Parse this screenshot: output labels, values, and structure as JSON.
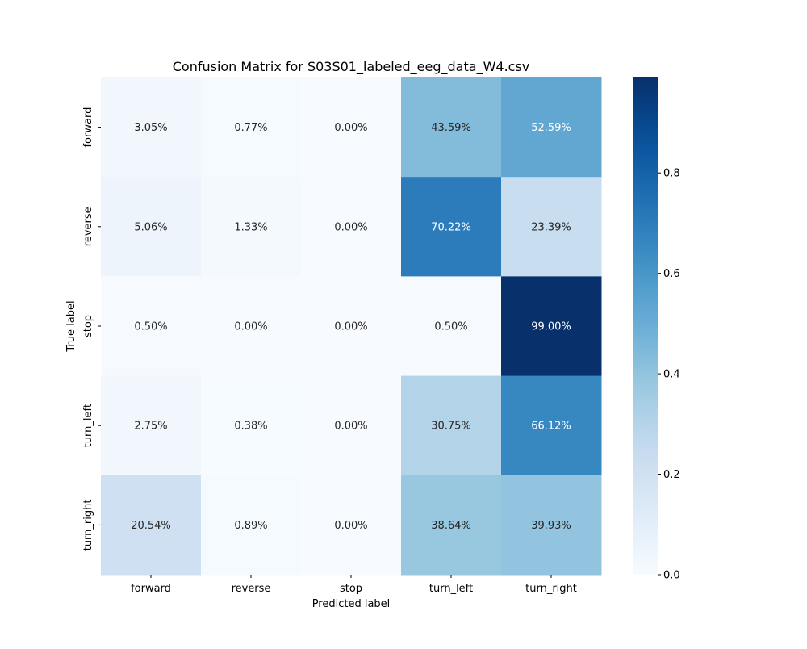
{
  "chart_data": {
    "type": "heatmap",
    "title": "Confusion Matrix for S03S01_labeled_eeg_data_W4.csv",
    "xlabel": "Predicted label",
    "ylabel": "True label",
    "x_categories": [
      "forward",
      "reverse",
      "stop",
      "turn_left",
      "turn_right"
    ],
    "y_categories": [
      "forward",
      "reverse",
      "stop",
      "turn_left",
      "turn_right"
    ],
    "values": [
      [
        0.0305,
        0.0077,
        0.0,
        0.4359,
        0.5259
      ],
      [
        0.0506,
        0.0133,
        0.0,
        0.7022,
        0.2339
      ],
      [
        0.005,
        0.0,
        0.0,
        0.005,
        0.99
      ],
      [
        0.0275,
        0.0038,
        0.0,
        0.3075,
        0.6612
      ],
      [
        0.2054,
        0.0089,
        0.0,
        0.3864,
        0.3993
      ]
    ],
    "annotations": [
      [
        "3.05%",
        "0.77%",
        "0.00%",
        "43.59%",
        "52.59%"
      ],
      [
        "5.06%",
        "1.33%",
        "0.00%",
        "70.22%",
        "23.39%"
      ],
      [
        "0.50%",
        "0.00%",
        "0.00%",
        "0.50%",
        "99.00%"
      ],
      [
        "2.75%",
        "0.38%",
        "0.00%",
        "30.75%",
        "66.12%"
      ],
      [
        "20.54%",
        "0.89%",
        "0.00%",
        "38.64%",
        "39.93%"
      ]
    ],
    "colormap": "Blues",
    "colorbar": {
      "range": [
        0.0,
        0.99
      ],
      "ticks": [
        0.0,
        0.2,
        0.4,
        0.6,
        0.8
      ],
      "tick_labels": [
        "0.0",
        "0.2",
        "0.4",
        "0.6",
        "0.8"
      ]
    }
  }
}
